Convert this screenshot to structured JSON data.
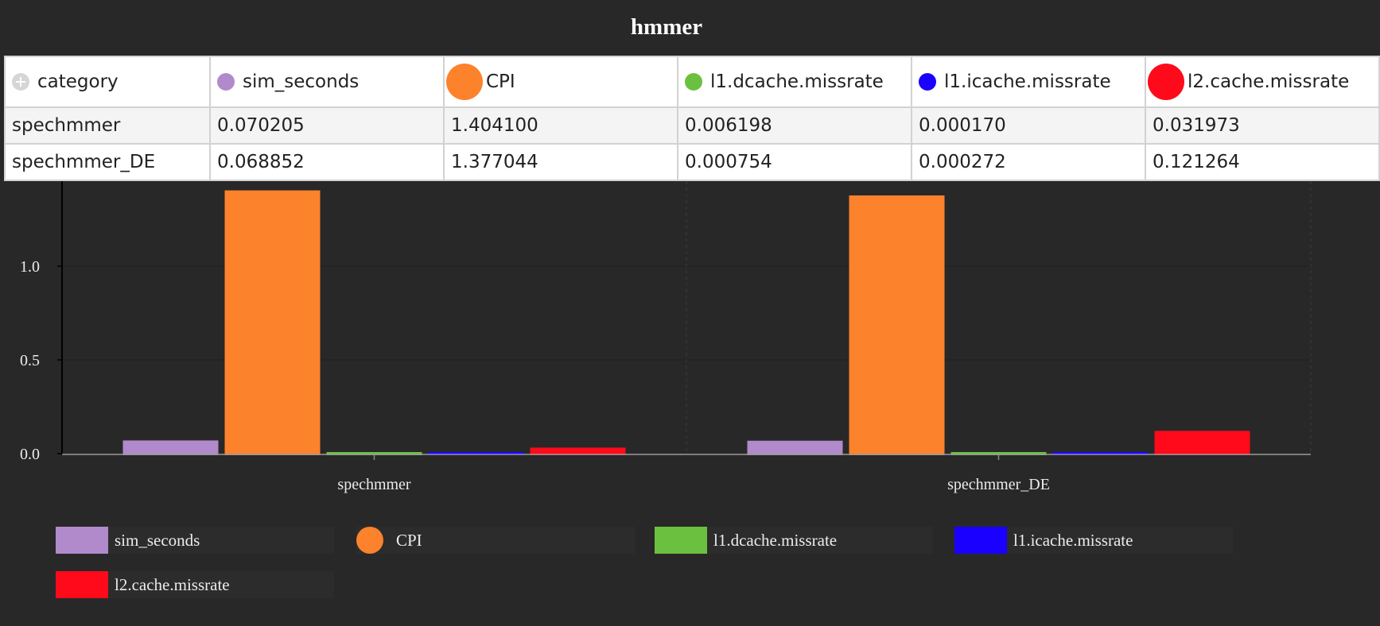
{
  "chart_data": {
    "type": "bar",
    "title": "hmmer",
    "categories": [
      "spechmmer",
      "spechmmer_DE"
    ],
    "series": [
      {
        "name": "sim_seconds",
        "values": [
          0.070205,
          0.068852
        ],
        "color": "#b18acb"
      },
      {
        "name": "CPI",
        "values": [
          1.4041,
          1.377044
        ],
        "color": "#fd822c"
      },
      {
        "name": "l1.dcache.missrate",
        "values": [
          0.006198,
          0.000754
        ],
        "color": "#6cc040"
      },
      {
        "name": "l1.icache.missrate",
        "values": [
          0.00017,
          0.000272
        ],
        "color": "#1a00ff"
      },
      {
        "name": "l2.cache.missrate",
        "values": [
          0.031973,
          0.121264
        ],
        "color": "#ff0a1a"
      }
    ],
    "ylim": [
      0,
      1.45
    ],
    "yticks": [
      0.0,
      0.5,
      1.0
    ],
    "ytick_labels": [
      "0.0",
      "0.5",
      "1.0"
    ],
    "xlabel": "",
    "ylabel": "",
    "grid": true,
    "legend": "bottom",
    "legend_markers": [
      "square",
      "circle",
      "square",
      "square",
      "square"
    ]
  },
  "table": {
    "first_header": "category",
    "headers": [
      "sim_seconds",
      "CPI",
      "l1.dcache.missrate",
      "l1.icache.missrate",
      "l2.cache.missrate"
    ],
    "header_icons": [
      "circle-small",
      "circle-large",
      "circle-small",
      "circle-small",
      "circle-large"
    ],
    "rows": [
      {
        "category": "spechmmer",
        "cells": [
          "0.070205",
          "1.404100",
          "0.006198",
          "0.000170",
          "0.031973"
        ]
      },
      {
        "category": "spechmmer_DE",
        "cells": [
          "0.068852",
          "1.377044",
          "0.000754",
          "0.000272",
          "0.121264"
        ]
      }
    ]
  },
  "colors": {
    "background": "#282828",
    "legend_cell": "#2c2c2c",
    "axis": "#000000",
    "text": "#ececec"
  }
}
